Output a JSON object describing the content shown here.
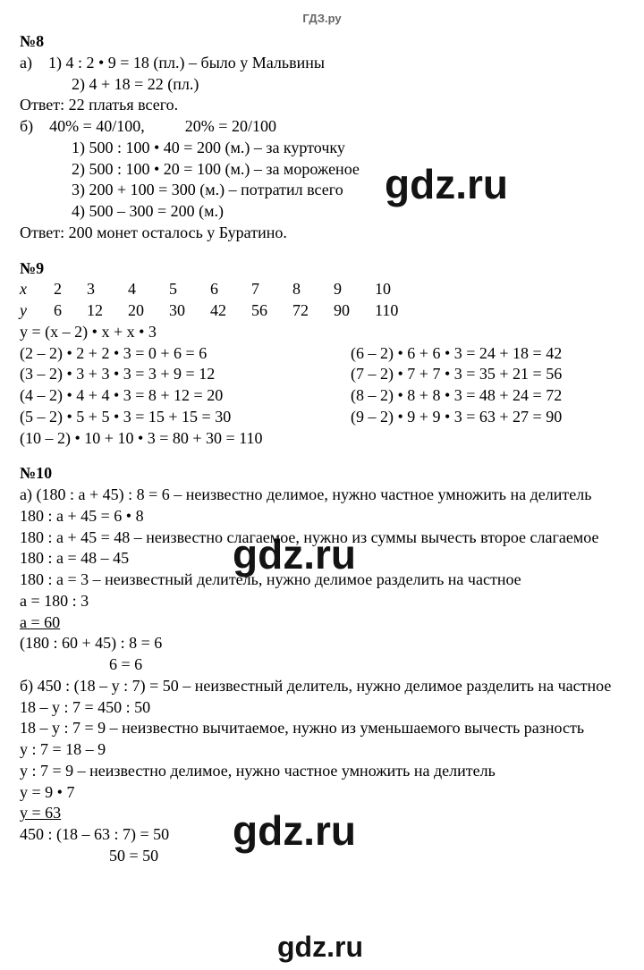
{
  "header": "ГДЗ.ру",
  "watermark": "gdz.ru",
  "p8": {
    "num": "№8",
    "a_label": "а)",
    "a1": "1) 4 : 2 • 9 = 18 (пл.) – было у Мальвины",
    "a2": "2) 4 + 18 = 22 (пл.)",
    "a_ans": "Ответ: 22 платья всего.",
    "b_label": "б)",
    "b_pct": "40% = 40/100,          20% = 20/100",
    "b1": "1) 500 : 100 • 40 = 200 (м.) – за курточку",
    "b2": "2) 500 : 100 • 20 = 100 (м.) – за мороженое",
    "b3": "3) 200 + 100 = 300 (м.) – потратил всего",
    "b4": "4) 500 – 300 = 200 (м.)",
    "b_ans": "Ответ: 200 монет осталось у Буратино."
  },
  "p9": {
    "num": "№9",
    "x_label": "x",
    "y_label": "y",
    "x": [
      "2",
      "3",
      "4",
      "5",
      "6",
      "7",
      "8",
      "9",
      "10"
    ],
    "y": [
      "6",
      "12",
      "20",
      "30",
      "42",
      "56",
      "72",
      "90",
      "110"
    ],
    "formula": "y = (x – 2) • x + x • 3",
    "l1": "(2 – 2) • 2 + 2 • 3 = 0 + 6 = 6",
    "r1": "(6 – 2) • 6 + 6 • 3 = 24 + 18 = 42",
    "l2": "(3 – 2) • 3 + 3 • 3 = 3 + 9 = 12",
    "r2": "(7 – 2) • 7 + 7 • 3 = 35 + 21 = 56",
    "l3": "(4 – 2) • 4 + 4 • 3 = 8 + 12 = 20",
    "r3": "(8 – 2) • 8 + 8 • 3 = 48 + 24 = 72",
    "l4": "(5 – 2) • 5 + 5 • 3 = 15 + 15 = 30",
    "r4": "(9 – 2) • 9 + 9 • 3 = 63 + 27 = 90",
    "l5": "(10 – 2) • 10 + 10 • 3 = 80 + 30 = 110"
  },
  "p10": {
    "num": "№10",
    "a1": "а) (180 : a + 45) : 8 = 6 – неизвестно делимое, нужно частное умножить на делитель",
    "a2": "180 : a + 45 = 6 • 8",
    "a3": "180 : a + 45 = 48 – неизвестно слагаемое, нужно из суммы вычесть второе слагаемое",
    "a4": "180 : a = 48 – 45",
    "a5": "180 : a = 3 – неизвестный делитель, нужно делимое разделить на частное",
    "a6": "a = 180 : 3",
    "a7": "a = 60",
    "a8": "(180 : 60 + 45) : 8 = 6",
    "a9": "6 = 6",
    "b1": "б) 450 : (18 – y : 7) = 50 – неизвестный делитель, нужно делимое разделить на частное",
    "b2": "18 – y : 7 = 450 : 50",
    "b3": "18 – y : 7 = 9 – неизвестно вычитаемое, нужно из уменьшаемого вычесть разность",
    "b4": "y : 7 = 18 – 9",
    "b5": "y : 7 = 9 – неизвестно делимое, нужно частное умножить на делитель",
    "b6": "y = 9 • 7",
    "b7": "y = 63",
    "b8": "450 : (18 – 63 : 7) = 50",
    "b9": "50 = 50"
  }
}
